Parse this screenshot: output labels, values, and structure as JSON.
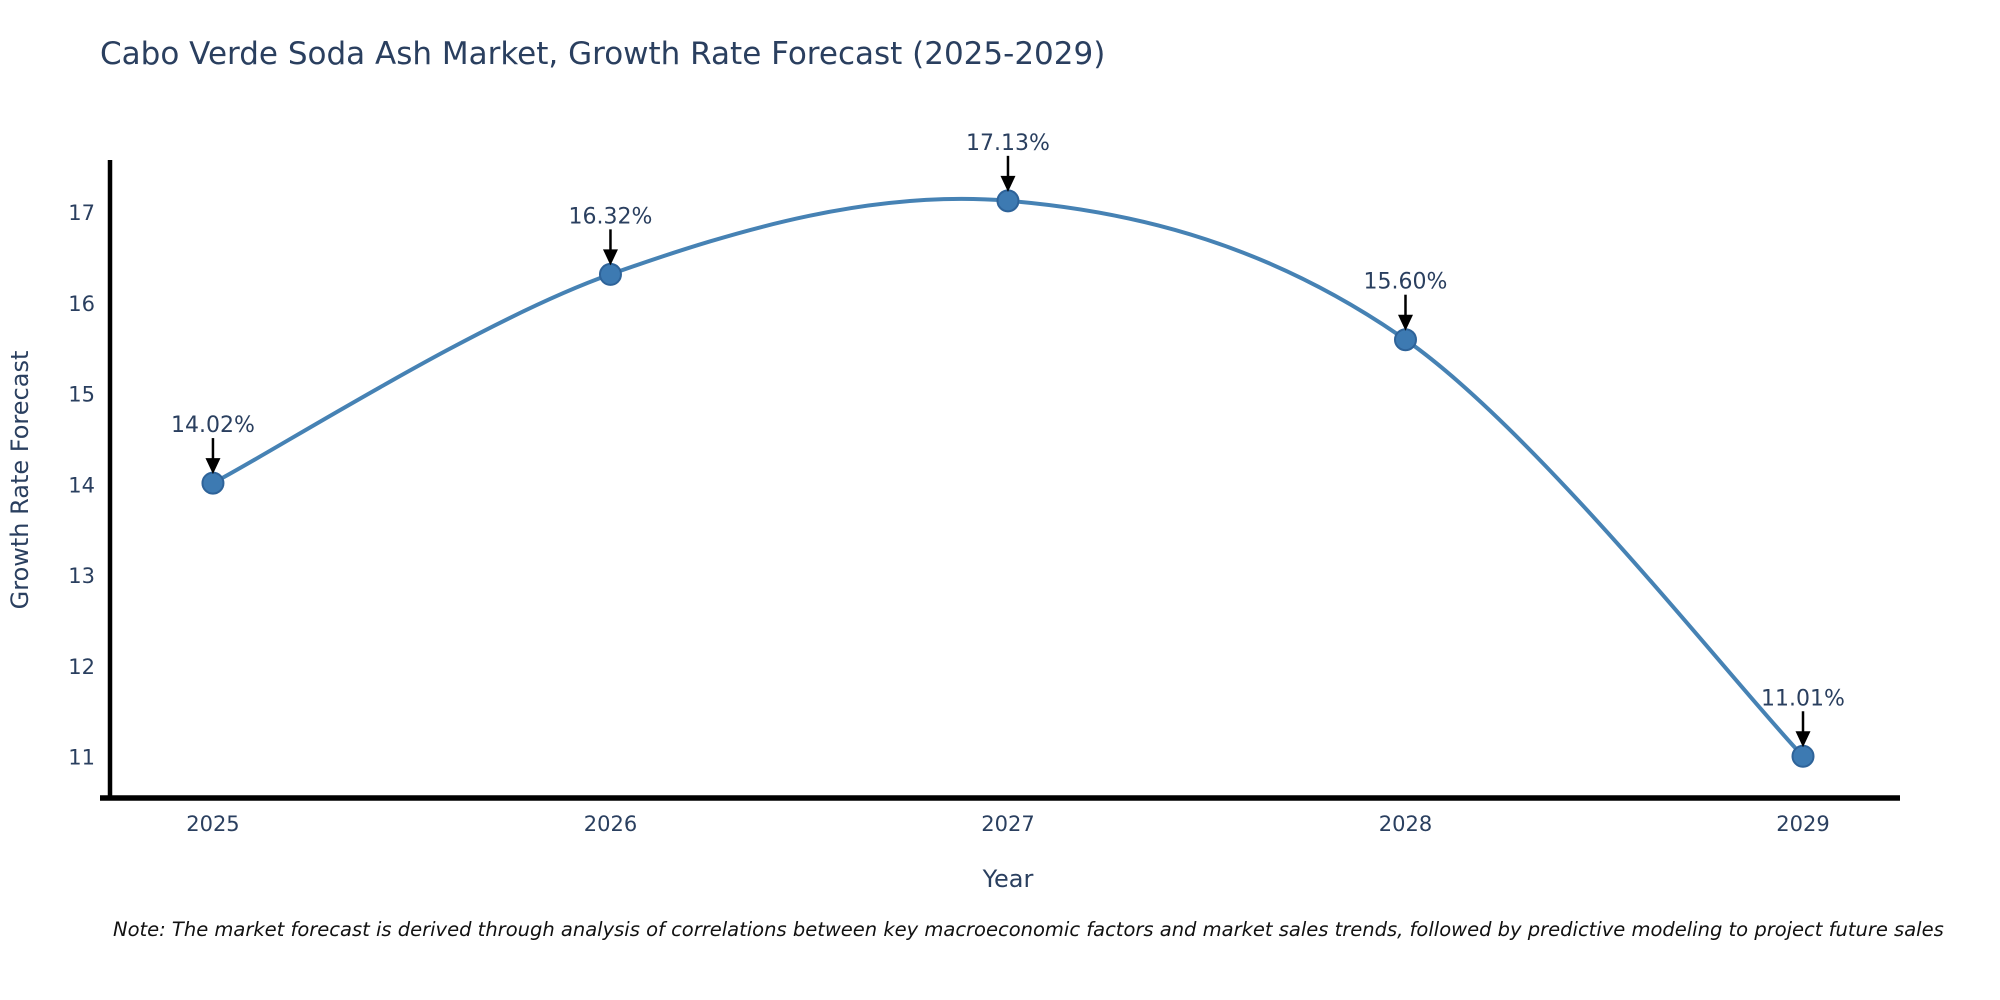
{
  "title": "Cabo Verde Soda Ash Market, Growth Rate Forecast (2025-2029)",
  "note": "Note: The market forecast is derived through analysis of correlations between key macroeconomic factors and market sales trends, followed by predictive modeling to project future sales",
  "chart_data": {
    "type": "line",
    "title": "Cabo Verde Soda Ash Market, Growth Rate Forecast (2025-2029)",
    "xlabel": "Year",
    "ylabel": "Growth Rate Forecast",
    "x": [
      2025,
      2026,
      2027,
      2028,
      2029
    ],
    "series": [
      {
        "name": "Growth Rate Forecast",
        "values": [
          14.02,
          16.32,
          17.13,
          15.6,
          11.01
        ]
      }
    ],
    "point_labels": [
      "14.02%",
      "16.32%",
      "17.13%",
      "15.60%",
      "11.01%"
    ],
    "yticks": [
      11,
      12,
      13,
      14,
      15,
      16,
      17
    ],
    "xticks": [
      2025,
      2026,
      2027,
      2028,
      2029
    ],
    "xlim": [
      2024.741,
      2029.244
    ],
    "ylim": [
      10.55,
      17.58
    ],
    "grid": false,
    "legend": false,
    "line_shape": "spline",
    "colors": {
      "line": "#4682b4",
      "marker_fill": "#3d7ab2",
      "marker_edge": "#2e6399",
      "axis_line": "#000000",
      "text": "#2a3f5f",
      "annotation_text": "#2a3f5f",
      "annotation_arrow": "#000000",
      "note_text": "#111111",
      "background": "#ffffff"
    }
  }
}
